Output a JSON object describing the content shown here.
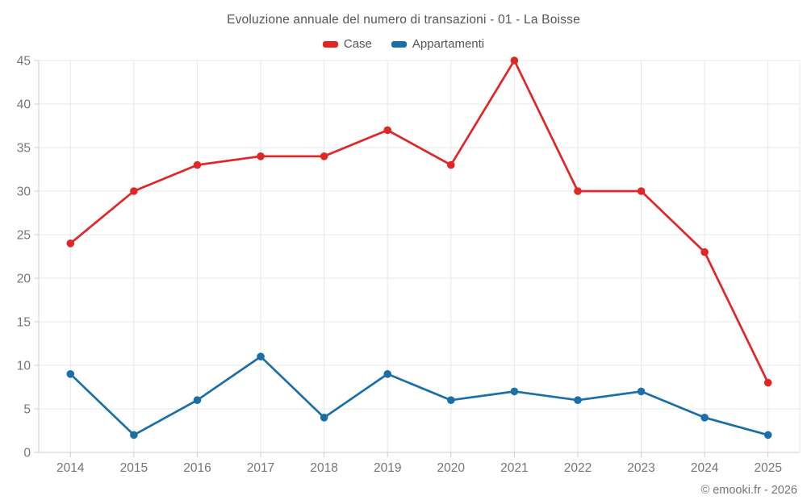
{
  "chart_data": {
    "type": "line",
    "title": "Evoluzione annuale del numero di transazioni - 01 - La Boisse",
    "categories": [
      "2014",
      "2015",
      "2016",
      "2017",
      "2018",
      "2019",
      "2020",
      "2021",
      "2022",
      "2023",
      "2024",
      "2025"
    ],
    "series": [
      {
        "name": "Case",
        "color": "#e12626",
        "values": [
          24,
          30,
          33,
          34,
          34,
          37,
          33,
          45,
          30,
          30,
          23,
          8
        ]
      },
      {
        "name": "Appartamenti",
        "color": "#1a6fa8",
        "values": [
          9,
          2,
          6,
          11,
          4,
          9,
          6,
          7,
          6,
          7,
          4,
          2
        ]
      }
    ],
    "xlabel": "",
    "ylabel": "",
    "ylim": [
      0,
      45
    ],
    "ytick_step": 5,
    "grid": true,
    "legend_position": "top"
  },
  "colors": {
    "case_red": "#e12626",
    "appartamenti_blue": "#1a6fa8",
    "grid_line": "#e8e8e8",
    "axis_line": "#cccccc",
    "axis_label": "#757575",
    "title_text": "#555555"
  },
  "footer": {
    "copyright": "© emooki.fr - 2026"
  }
}
